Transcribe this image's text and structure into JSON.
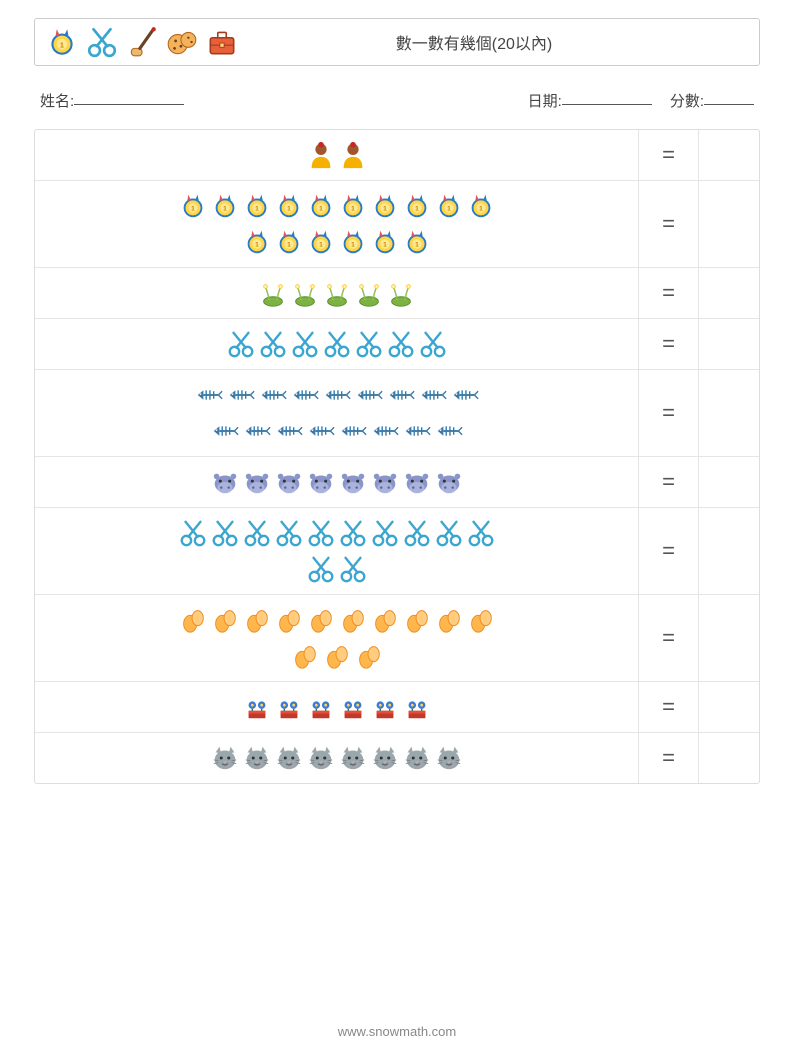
{
  "header": {
    "title": "數一數有幾個(20以內)",
    "icons": [
      "medal",
      "scissors",
      "paintbrush",
      "cookies",
      "briefcase"
    ]
  },
  "meta": {
    "name_label": "姓名:",
    "date_label": "日期:",
    "score_label": "分數:"
  },
  "equals_symbol": "=",
  "rows": [
    {
      "icon": "person",
      "lines": [
        2
      ]
    },
    {
      "icon": "medal",
      "lines": [
        10,
        6
      ]
    },
    {
      "icon": "plant",
      "lines": [
        5
      ]
    },
    {
      "icon": "scissors",
      "lines": [
        7
      ]
    },
    {
      "icon": "fishbone",
      "lines": [
        9,
        8
      ]
    },
    {
      "icon": "hippo",
      "lines": [
        8
      ]
    },
    {
      "icon": "scissors",
      "lines": [
        10,
        2
      ]
    },
    {
      "icon": "eggs",
      "lines": [
        10,
        3
      ]
    },
    {
      "icon": "flowerpot",
      "lines": [
        6
      ]
    },
    {
      "icon": "cat",
      "lines": [
        8
      ]
    }
  ],
  "footer": {
    "site": "www.snowmath.com"
  },
  "colors": {
    "border": "#dddddd",
    "text": "#444444"
  }
}
